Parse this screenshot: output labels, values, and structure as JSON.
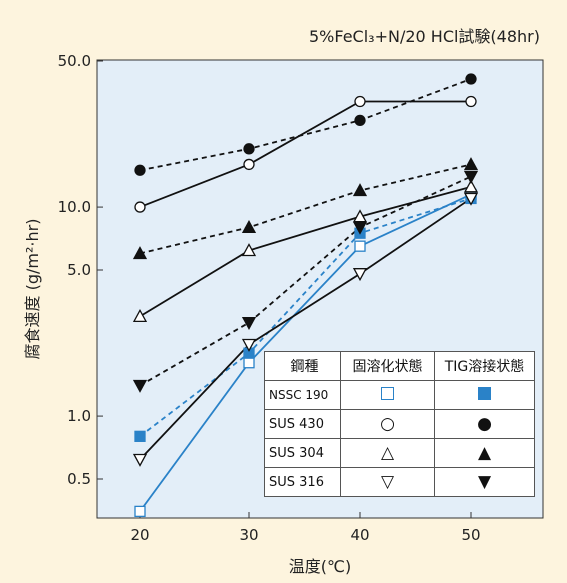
{
  "chart_data": {
    "type": "line",
    "title": "5%FeCl₃+N/20 HCl試験(48hr)",
    "xlabel": "温度(℃)",
    "ylabel": "腐食速度 (g/m²·hr)",
    "y_scale": "log",
    "x_ticks": [
      "20",
      "30",
      "40",
      "50"
    ],
    "y_ticks": [
      "50.0",
      "10.0",
      "5.0",
      "1.0",
      "0.5"
    ],
    "x": [
      20,
      30,
      40,
      50
    ],
    "xlim": [
      20,
      50
    ],
    "ylim": [
      0.25,
      50
    ],
    "grid": false,
    "series": [
      {
        "material": "NSSC 190",
        "condition": "固溶化状態",
        "line_style": "solid",
        "color": "#2a82c8",
        "marker": "square-open",
        "values": [
          0.35,
          1.8,
          6.5,
          11.5
        ]
      },
      {
        "material": "NSSC 190",
        "condition": "TIG溶接状態",
        "line_style": "dashed",
        "color": "#2a82c8",
        "marker": "square-filled",
        "values": [
          0.8,
          2.0,
          7.5,
          11.0
        ]
      },
      {
        "material": "SUS 430",
        "condition": "固溶化状態",
        "line_style": "solid",
        "color": "#111111",
        "marker": "circle-open",
        "values": [
          10.0,
          16.0,
          32.0,
          32.0
        ]
      },
      {
        "material": "SUS 430",
        "condition": "TIG溶接状態",
        "line_style": "dashed",
        "color": "#111111",
        "marker": "circle-filled",
        "values": [
          15.0,
          19.0,
          26.0,
          41.0
        ]
      },
      {
        "material": "SUS 304",
        "condition": "固溶化状態",
        "line_style": "solid",
        "color": "#111111",
        "marker": "triangle-up-open",
        "values": [
          3.0,
          6.2,
          9.0,
          12.5
        ]
      },
      {
        "material": "SUS 304",
        "condition": "TIG溶接状態",
        "line_style": "dashed",
        "color": "#111111",
        "marker": "triangle-up-filled",
        "values": [
          6.0,
          8.0,
          12.0,
          16.0
        ]
      },
      {
        "material": "SUS 316",
        "condition": "固溶化状態",
        "line_style": "solid",
        "color": "#111111",
        "marker": "triangle-down-open",
        "values": [
          0.62,
          2.2,
          4.8,
          11.0
        ]
      },
      {
        "material": "SUS 316",
        "condition": "TIG溶接状態",
        "line_style": "dashed",
        "color": "#111111",
        "marker": "triangle-down-filled",
        "values": [
          1.4,
          2.8,
          8.0,
          14.0
        ]
      }
    ],
    "legend": {
      "placement": "bottom-right",
      "headers": [
        "鋼種",
        "固溶化状態",
        "TIG溶接状態"
      ],
      "rows": [
        {
          "name": "NSSC 190",
          "solution_marker": "square-open",
          "tig_marker": "square-filled"
        },
        {
          "name": "SUS 430",
          "solution_marker": "circle-open",
          "tig_marker": "circle-filled"
        },
        {
          "name": "SUS 304",
          "solution_marker": "triangle-up-open",
          "tig_marker": "triangle-up-filled"
        },
        {
          "name": "SUS 316",
          "solution_marker": "triangle-down-open",
          "tig_marker": "triangle-down-filled"
        }
      ]
    }
  },
  "colors": {
    "background": "#fdf4de",
    "plot_background": "#e3eef8",
    "accent_blue": "#2a82c8",
    "line_black": "#111111"
  }
}
